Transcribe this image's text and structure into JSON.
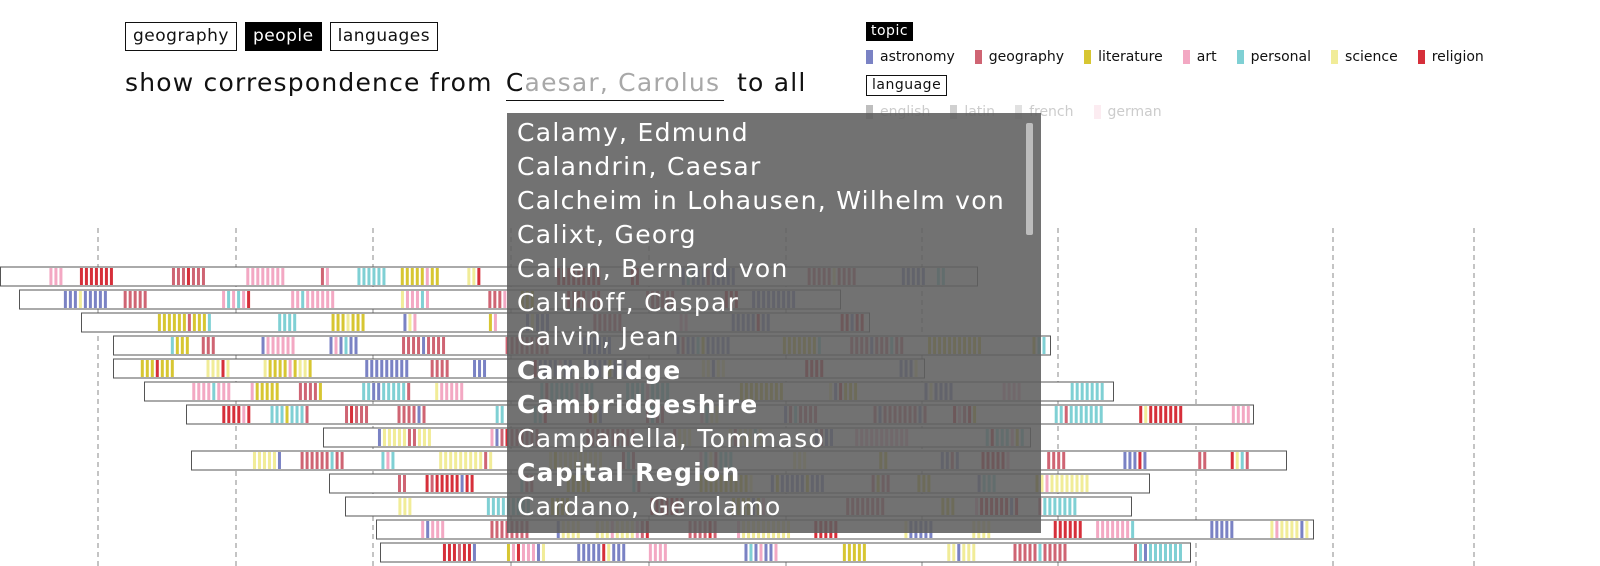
{
  "tabs": [
    {
      "label": "geography",
      "active": false
    },
    {
      "label": "people",
      "active": true
    },
    {
      "label": "languages",
      "active": false
    }
  ],
  "query": {
    "prefix": "show correspondence from",
    "typed": "C",
    "suggestion": "aesar, Carolus",
    "suffix": "to all"
  },
  "legend": {
    "topic_title": "topic",
    "topics": [
      {
        "label": "astronomy",
        "color": "#7a82c4"
      },
      {
        "label": "geography",
        "color": "#cf6473"
      },
      {
        "label": "literature",
        "color": "#d7c632"
      },
      {
        "label": "art",
        "color": "#f3a8c3"
      },
      {
        "label": "personal",
        "color": "#7fd0d4"
      },
      {
        "label": "science",
        "color": "#f1ec98"
      },
      {
        "label": "religion",
        "color": "#d62f3a"
      }
    ],
    "language_title": "language",
    "languages": [
      {
        "label": "english",
        "color": "#444444"
      },
      {
        "label": "latin",
        "color": "#777777"
      },
      {
        "label": "french",
        "color": "#aaaaaa"
      },
      {
        "label": "german",
        "color": "#f6c9d6"
      }
    ]
  },
  "dropdown": {
    "items": [
      {
        "label": "Calamy, Edmund",
        "place": false
      },
      {
        "label": "Calandrin, Caesar",
        "place": false
      },
      {
        "label": "Calcheim in Lohausen, Wilhelm von",
        "place": false
      },
      {
        "label": "Calixt, Georg",
        "place": false
      },
      {
        "label": "Callen, Bernard von",
        "place": false
      },
      {
        "label": "Calthoff, Caspar",
        "place": false
      },
      {
        "label": "Calvin, Jean",
        "place": false
      },
      {
        "label": "Cambridge",
        "place": true
      },
      {
        "label": "Cambridgeshire",
        "place": true
      },
      {
        "label": "Campanella, Tommaso",
        "place": false
      },
      {
        "label": "Capital Region",
        "place": true
      },
      {
        "label": "Cardano, Gerolamo",
        "place": false
      }
    ]
  }
}
